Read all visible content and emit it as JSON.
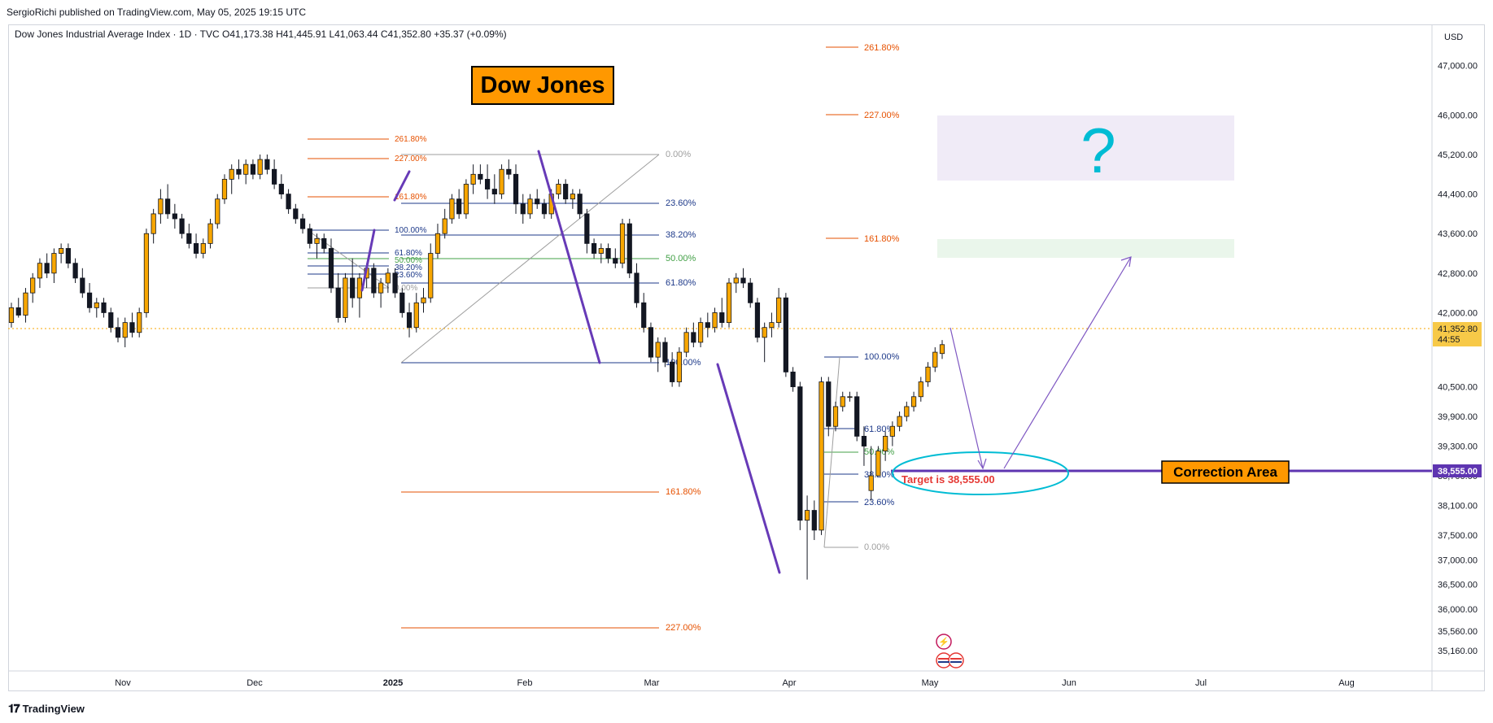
{
  "header": {
    "published_line": "SergioRichi published on TradingView.com, May 05, 2025 19:15 UTC",
    "ohlc_line": "Dow Jones Industrial Average Index · 1D · TVC  O41,173.38  H41,445.91  L41,063.44  C41,352.80  +35.37 (+0.09%)"
  },
  "brand": {
    "name": "TradingView",
    "logo_icon": "tradingview-logo-icon"
  },
  "chart_data": {
    "type": "candlestick",
    "currency": "USD",
    "ylim": [
      34800,
      47800
    ],
    "y_ticks": [
      35160,
      35560,
      36000,
      36500,
      37000,
      37500,
      38100,
      38700,
      39300,
      39900,
      40500,
      41500,
      42000,
      42800,
      43600,
      44400,
      45200,
      46000,
      47000
    ],
    "x_tick_labels": [
      {
        "label": "Nov",
        "bold": false
      },
      {
        "label": "Dec",
        "bold": false
      },
      {
        "label": "2025",
        "bold": true
      },
      {
        "label": "Feb",
        "bold": false
      },
      {
        "label": "Mar",
        "bold": false
      },
      {
        "label": "Apr",
        "bold": false
      },
      {
        "label": "May",
        "bold": false
      },
      {
        "label": "Jun",
        "bold": false
      },
      {
        "label": "Jul",
        "bold": false
      },
      {
        "label": "Aug",
        "bold": false
      }
    ],
    "candles": [
      {
        "o": 41800,
        "h": 42200,
        "l": 41700,
        "c": 42100
      },
      {
        "o": 42100,
        "h": 42300,
        "l": 41900,
        "c": 41950
      },
      {
        "o": 41950,
        "h": 42500,
        "l": 41800,
        "c": 42400
      },
      {
        "o": 42400,
        "h": 42800,
        "l": 42200,
        "c": 42700
      },
      {
        "o": 42700,
        "h": 43100,
        "l": 42500,
        "c": 43000
      },
      {
        "o": 43000,
        "h": 43200,
        "l": 42700,
        "c": 42800
      },
      {
        "o": 42800,
        "h": 43300,
        "l": 42600,
        "c": 43200
      },
      {
        "o": 43200,
        "h": 43400,
        "l": 43000,
        "c": 43300
      },
      {
        "o": 43300,
        "h": 43400,
        "l": 42900,
        "c": 43000
      },
      {
        "o": 43000,
        "h": 43100,
        "l": 42600,
        "c": 42700
      },
      {
        "o": 42700,
        "h": 42900,
        "l": 42300,
        "c": 42400
      },
      {
        "o": 42400,
        "h": 42600,
        "l": 42000,
        "c": 42100
      },
      {
        "o": 42100,
        "h": 42300,
        "l": 41900,
        "c": 42200
      },
      {
        "o": 42200,
        "h": 42300,
        "l": 41900,
        "c": 42000
      },
      {
        "o": 42000,
        "h": 42100,
        "l": 41600,
        "c": 41700
      },
      {
        "o": 41700,
        "h": 41900,
        "l": 41400,
        "c": 41500
      },
      {
        "o": 41500,
        "h": 41900,
        "l": 41300,
        "c": 41800
      },
      {
        "o": 41800,
        "h": 42000,
        "l": 41500,
        "c": 41600
      },
      {
        "o": 41600,
        "h": 42100,
        "l": 41500,
        "c": 42000
      },
      {
        "o": 42000,
        "h": 43700,
        "l": 41900,
        "c": 43600
      },
      {
        "o": 43600,
        "h": 44100,
        "l": 43400,
        "c": 44000
      },
      {
        "o": 44000,
        "h": 44500,
        "l": 43800,
        "c": 44300
      },
      {
        "o": 44300,
        "h": 44600,
        "l": 43900,
        "c": 44000
      },
      {
        "o": 44000,
        "h": 44200,
        "l": 43700,
        "c": 43900
      },
      {
        "o": 43900,
        "h": 44000,
        "l": 43500,
        "c": 43600
      },
      {
        "o": 43600,
        "h": 43800,
        "l": 43300,
        "c": 43400
      },
      {
        "o": 43400,
        "h": 43600,
        "l": 43100,
        "c": 43200
      },
      {
        "o": 43200,
        "h": 43500,
        "l": 43100,
        "c": 43400
      },
      {
        "o": 43400,
        "h": 43900,
        "l": 43300,
        "c": 43800
      },
      {
        "o": 43800,
        "h": 44400,
        "l": 43700,
        "c": 44300
      },
      {
        "o": 44300,
        "h": 44800,
        "l": 44200,
        "c": 44700
      },
      {
        "o": 44700,
        "h": 45000,
        "l": 44400,
        "c": 44900
      },
      {
        "o": 44900,
        "h": 45100,
        "l": 44700,
        "c": 44800
      },
      {
        "o": 44800,
        "h": 45100,
        "l": 44600,
        "c": 45000
      },
      {
        "o": 45000,
        "h": 45100,
        "l": 44700,
        "c": 44800
      },
      {
        "o": 44800,
        "h": 45200,
        "l": 44700,
        "c": 45100
      },
      {
        "o": 45100,
        "h": 45200,
        "l": 44800,
        "c": 44900
      },
      {
        "o": 44900,
        "h": 45100,
        "l": 44500,
        "c": 44600
      },
      {
        "o": 44600,
        "h": 44800,
        "l": 44300,
        "c": 44400
      },
      {
        "o": 44400,
        "h": 44500,
        "l": 44000,
        "c": 44100
      },
      {
        "o": 44100,
        "h": 44200,
        "l": 43800,
        "c": 43900
      },
      {
        "o": 43900,
        "h": 44000,
        "l": 43600,
        "c": 43700
      },
      {
        "o": 43700,
        "h": 43800,
        "l": 43300,
        "c": 43400
      },
      {
        "o": 43400,
        "h": 43600,
        "l": 43100,
        "c": 43500
      },
      {
        "o": 43500,
        "h": 43600,
        "l": 43200,
        "c": 43300
      },
      {
        "o": 43300,
        "h": 43500,
        "l": 42400,
        "c": 42500
      },
      {
        "o": 42500,
        "h": 42800,
        "l": 41800,
        "c": 41900
      },
      {
        "o": 41900,
        "h": 42800,
        "l": 41800,
        "c": 42700
      },
      {
        "o": 42700,
        "h": 43100,
        "l": 42100,
        "c": 42300
      },
      {
        "o": 42300,
        "h": 42800,
        "l": 41900,
        "c": 42700
      },
      {
        "o": 42700,
        "h": 43000,
        "l": 42500,
        "c": 42900
      },
      {
        "o": 42900,
        "h": 43000,
        "l": 42300,
        "c": 42400
      },
      {
        "o": 42400,
        "h": 42700,
        "l": 42100,
        "c": 42600
      },
      {
        "o": 42600,
        "h": 42900,
        "l": 42400,
        "c": 42800
      },
      {
        "o": 42800,
        "h": 42900,
        "l": 42300,
        "c": 42400
      },
      {
        "o": 42400,
        "h": 42500,
        "l": 41900,
        "c": 42000
      },
      {
        "o": 42000,
        "h": 42200,
        "l": 41500,
        "c": 41700
      },
      {
        "o": 41700,
        "h": 42400,
        "l": 41600,
        "c": 42200
      },
      {
        "o": 42200,
        "h": 42500,
        "l": 42000,
        "c": 42300
      },
      {
        "o": 42300,
        "h": 43400,
        "l": 42200,
        "c": 43200
      },
      {
        "o": 43200,
        "h": 43800,
        "l": 43100,
        "c": 43600
      },
      {
        "o": 43600,
        "h": 44100,
        "l": 43500,
        "c": 43900
      },
      {
        "o": 43900,
        "h": 44400,
        "l": 43800,
        "c": 44300
      },
      {
        "o": 44300,
        "h": 44500,
        "l": 43900,
        "c": 44000
      },
      {
        "o": 44000,
        "h": 44700,
        "l": 43900,
        "c": 44600
      },
      {
        "o": 44600,
        "h": 45000,
        "l": 44400,
        "c": 44800
      },
      {
        "o": 44800,
        "h": 45000,
        "l": 44600,
        "c": 44700
      },
      {
        "o": 44700,
        "h": 45000,
        "l": 44300,
        "c": 44500
      },
      {
        "o": 44500,
        "h": 44800,
        "l": 44200,
        "c": 44400
      },
      {
        "o": 44400,
        "h": 45000,
        "l": 44300,
        "c": 44900
      },
      {
        "o": 44900,
        "h": 45100,
        "l": 44700,
        "c": 44800
      },
      {
        "o": 44800,
        "h": 45000,
        "l": 44000,
        "c": 44200
      },
      {
        "o": 44200,
        "h": 44400,
        "l": 43800,
        "c": 44000
      },
      {
        "o": 44000,
        "h": 44400,
        "l": 43900,
        "c": 44300
      },
      {
        "o": 44300,
        "h": 44500,
        "l": 44100,
        "c": 44200
      },
      {
        "o": 44200,
        "h": 44300,
        "l": 43900,
        "c": 44000
      },
      {
        "o": 44000,
        "h": 44500,
        "l": 43900,
        "c": 44400
      },
      {
        "o": 44400,
        "h": 44700,
        "l": 44300,
        "c": 44600
      },
      {
        "o": 44600,
        "h": 44700,
        "l": 44200,
        "c": 44300
      },
      {
        "o": 44300,
        "h": 44500,
        "l": 44100,
        "c": 44400
      },
      {
        "o": 44400,
        "h": 44500,
        "l": 43900,
        "c": 44000
      },
      {
        "o": 44000,
        "h": 44100,
        "l": 43200,
        "c": 43400
      },
      {
        "o": 43400,
        "h": 43500,
        "l": 43100,
        "c": 43200
      },
      {
        "o": 43200,
        "h": 43400,
        "l": 43000,
        "c": 43300
      },
      {
        "o": 43300,
        "h": 43400,
        "l": 43000,
        "c": 43100
      },
      {
        "o": 43100,
        "h": 43300,
        "l": 42900,
        "c": 43000
      },
      {
        "o": 43000,
        "h": 43900,
        "l": 42900,
        "c": 43800
      },
      {
        "o": 43800,
        "h": 43900,
        "l": 42700,
        "c": 42800
      },
      {
        "o": 42800,
        "h": 43000,
        "l": 42100,
        "c": 42200
      },
      {
        "o": 42200,
        "h": 42400,
        "l": 41600,
        "c": 41700
      },
      {
        "o": 41700,
        "h": 41800,
        "l": 41000,
        "c": 41100
      },
      {
        "o": 41100,
        "h": 41500,
        "l": 40800,
        "c": 41400
      },
      {
        "o": 41400,
        "h": 41500,
        "l": 40900,
        "c": 41000
      },
      {
        "o": 41000,
        "h": 41200,
        "l": 40500,
        "c": 40600
      },
      {
        "o": 40600,
        "h": 41300,
        "l": 40500,
        "c": 41200
      },
      {
        "o": 41200,
        "h": 41700,
        "l": 41100,
        "c": 41600
      },
      {
        "o": 41600,
        "h": 41800,
        "l": 41300,
        "c": 41400
      },
      {
        "o": 41400,
        "h": 41900,
        "l": 41300,
        "c": 41800
      },
      {
        "o": 41800,
        "h": 42000,
        "l": 41500,
        "c": 41700
      },
      {
        "o": 41700,
        "h": 42100,
        "l": 41600,
        "c": 42000
      },
      {
        "o": 42000,
        "h": 42300,
        "l": 41700,
        "c": 41800
      },
      {
        "o": 41800,
        "h": 42700,
        "l": 41700,
        "c": 42600
      },
      {
        "o": 42600,
        "h": 42800,
        "l": 42400,
        "c": 42700
      },
      {
        "o": 42700,
        "h": 42900,
        "l": 42500,
        "c": 42600
      },
      {
        "o": 42600,
        "h": 42700,
        "l": 42100,
        "c": 42200
      },
      {
        "o": 42200,
        "h": 42300,
        "l": 41400,
        "c": 41500
      },
      {
        "o": 41500,
        "h": 41800,
        "l": 41000,
        "c": 41700
      },
      {
        "o": 41700,
        "h": 42000,
        "l": 41500,
        "c": 41800
      },
      {
        "o": 41800,
        "h": 42500,
        "l": 41700,
        "c": 42300
      },
      {
        "o": 42300,
        "h": 42400,
        "l": 40700,
        "c": 40800
      },
      {
        "o": 40800,
        "h": 40900,
        "l": 40400,
        "c": 40500
      },
      {
        "o": 40500,
        "h": 40600,
        "l": 37600,
        "c": 37800
      },
      {
        "o": 37800,
        "h": 38300,
        "l": 36600,
        "c": 38000
      },
      {
        "o": 38000,
        "h": 38200,
        "l": 37400,
        "c": 37600
      },
      {
        "o": 37600,
        "h": 40700,
        "l": 37500,
        "c": 40600
      },
      {
        "o": 40600,
        "h": 40700,
        "l": 39500,
        "c": 39700
      },
      {
        "o": 39700,
        "h": 40200,
        "l": 39600,
        "c": 40100
      },
      {
        "o": 40100,
        "h": 40400,
        "l": 40000,
        "c": 40300
      },
      {
        "o": 40300,
        "h": 40400,
        "l": 40200,
        "c": 40300
      },
      {
        "o": 40300,
        "h": 40400,
        "l": 39400,
        "c": 39500
      },
      {
        "o": 39500,
        "h": 39700,
        "l": 38900,
        "c": 39300
      },
      {
        "o": 38400,
        "h": 39300,
        "l": 38200,
        "c": 38700
      },
      {
        "o": 38700,
        "h": 39300,
        "l": 38700,
        "c": 39200
      },
      {
        "o": 39200,
        "h": 39600,
        "l": 39000,
        "c": 39500
      },
      {
        "o": 39500,
        "h": 39800,
        "l": 39300,
        "c": 39700
      },
      {
        "o": 39700,
        "h": 40000,
        "l": 39600,
        "c": 39900
      },
      {
        "o": 39900,
        "h": 40200,
        "l": 39800,
        "c": 40100
      },
      {
        "o": 40100,
        "h": 40400,
        "l": 40000,
        "c": 40300
      },
      {
        "o": 40300,
        "h": 40700,
        "l": 40200,
        "c": 40600
      },
      {
        "o": 40600,
        "h": 41000,
        "l": 40500,
        "c": 40900
      },
      {
        "o": 40900,
        "h": 41300,
        "l": 40800,
        "c": 41200
      },
      {
        "o": 41173,
        "h": 41446,
        "l": 41063,
        "c": 41353
      }
    ],
    "last_price": {
      "value": 41352.8,
      "label": "41,352.80",
      "countdown": "44:55"
    },
    "target_price": {
      "value": 38555.0,
      "label": "38,555.00"
    }
  },
  "annotations": {
    "title_box": "Dow Jones",
    "correction_box": "Correction Area",
    "target_text": "Target is 38,555.00",
    "question_mark": "?",
    "fib_labels": [
      "261.80%",
      "227.00%",
      "161.80%",
      "100.00%",
      "61.80%",
      "50.00%",
      "38.20%",
      "23.60%",
      "0.00%"
    ]
  },
  "colors": {
    "bull": "#f7a600",
    "bear": "#131722",
    "fib_blue": "#1e3a8a",
    "fib_orange": "#e65100",
    "fib_green": "#43a047",
    "purple": "#673ab7",
    "cyan": "#00bcd4",
    "target_red": "#e53935",
    "box_orange": "#ff9800",
    "price_tag": "#f7c948",
    "target_tag": "#5e35b1"
  }
}
